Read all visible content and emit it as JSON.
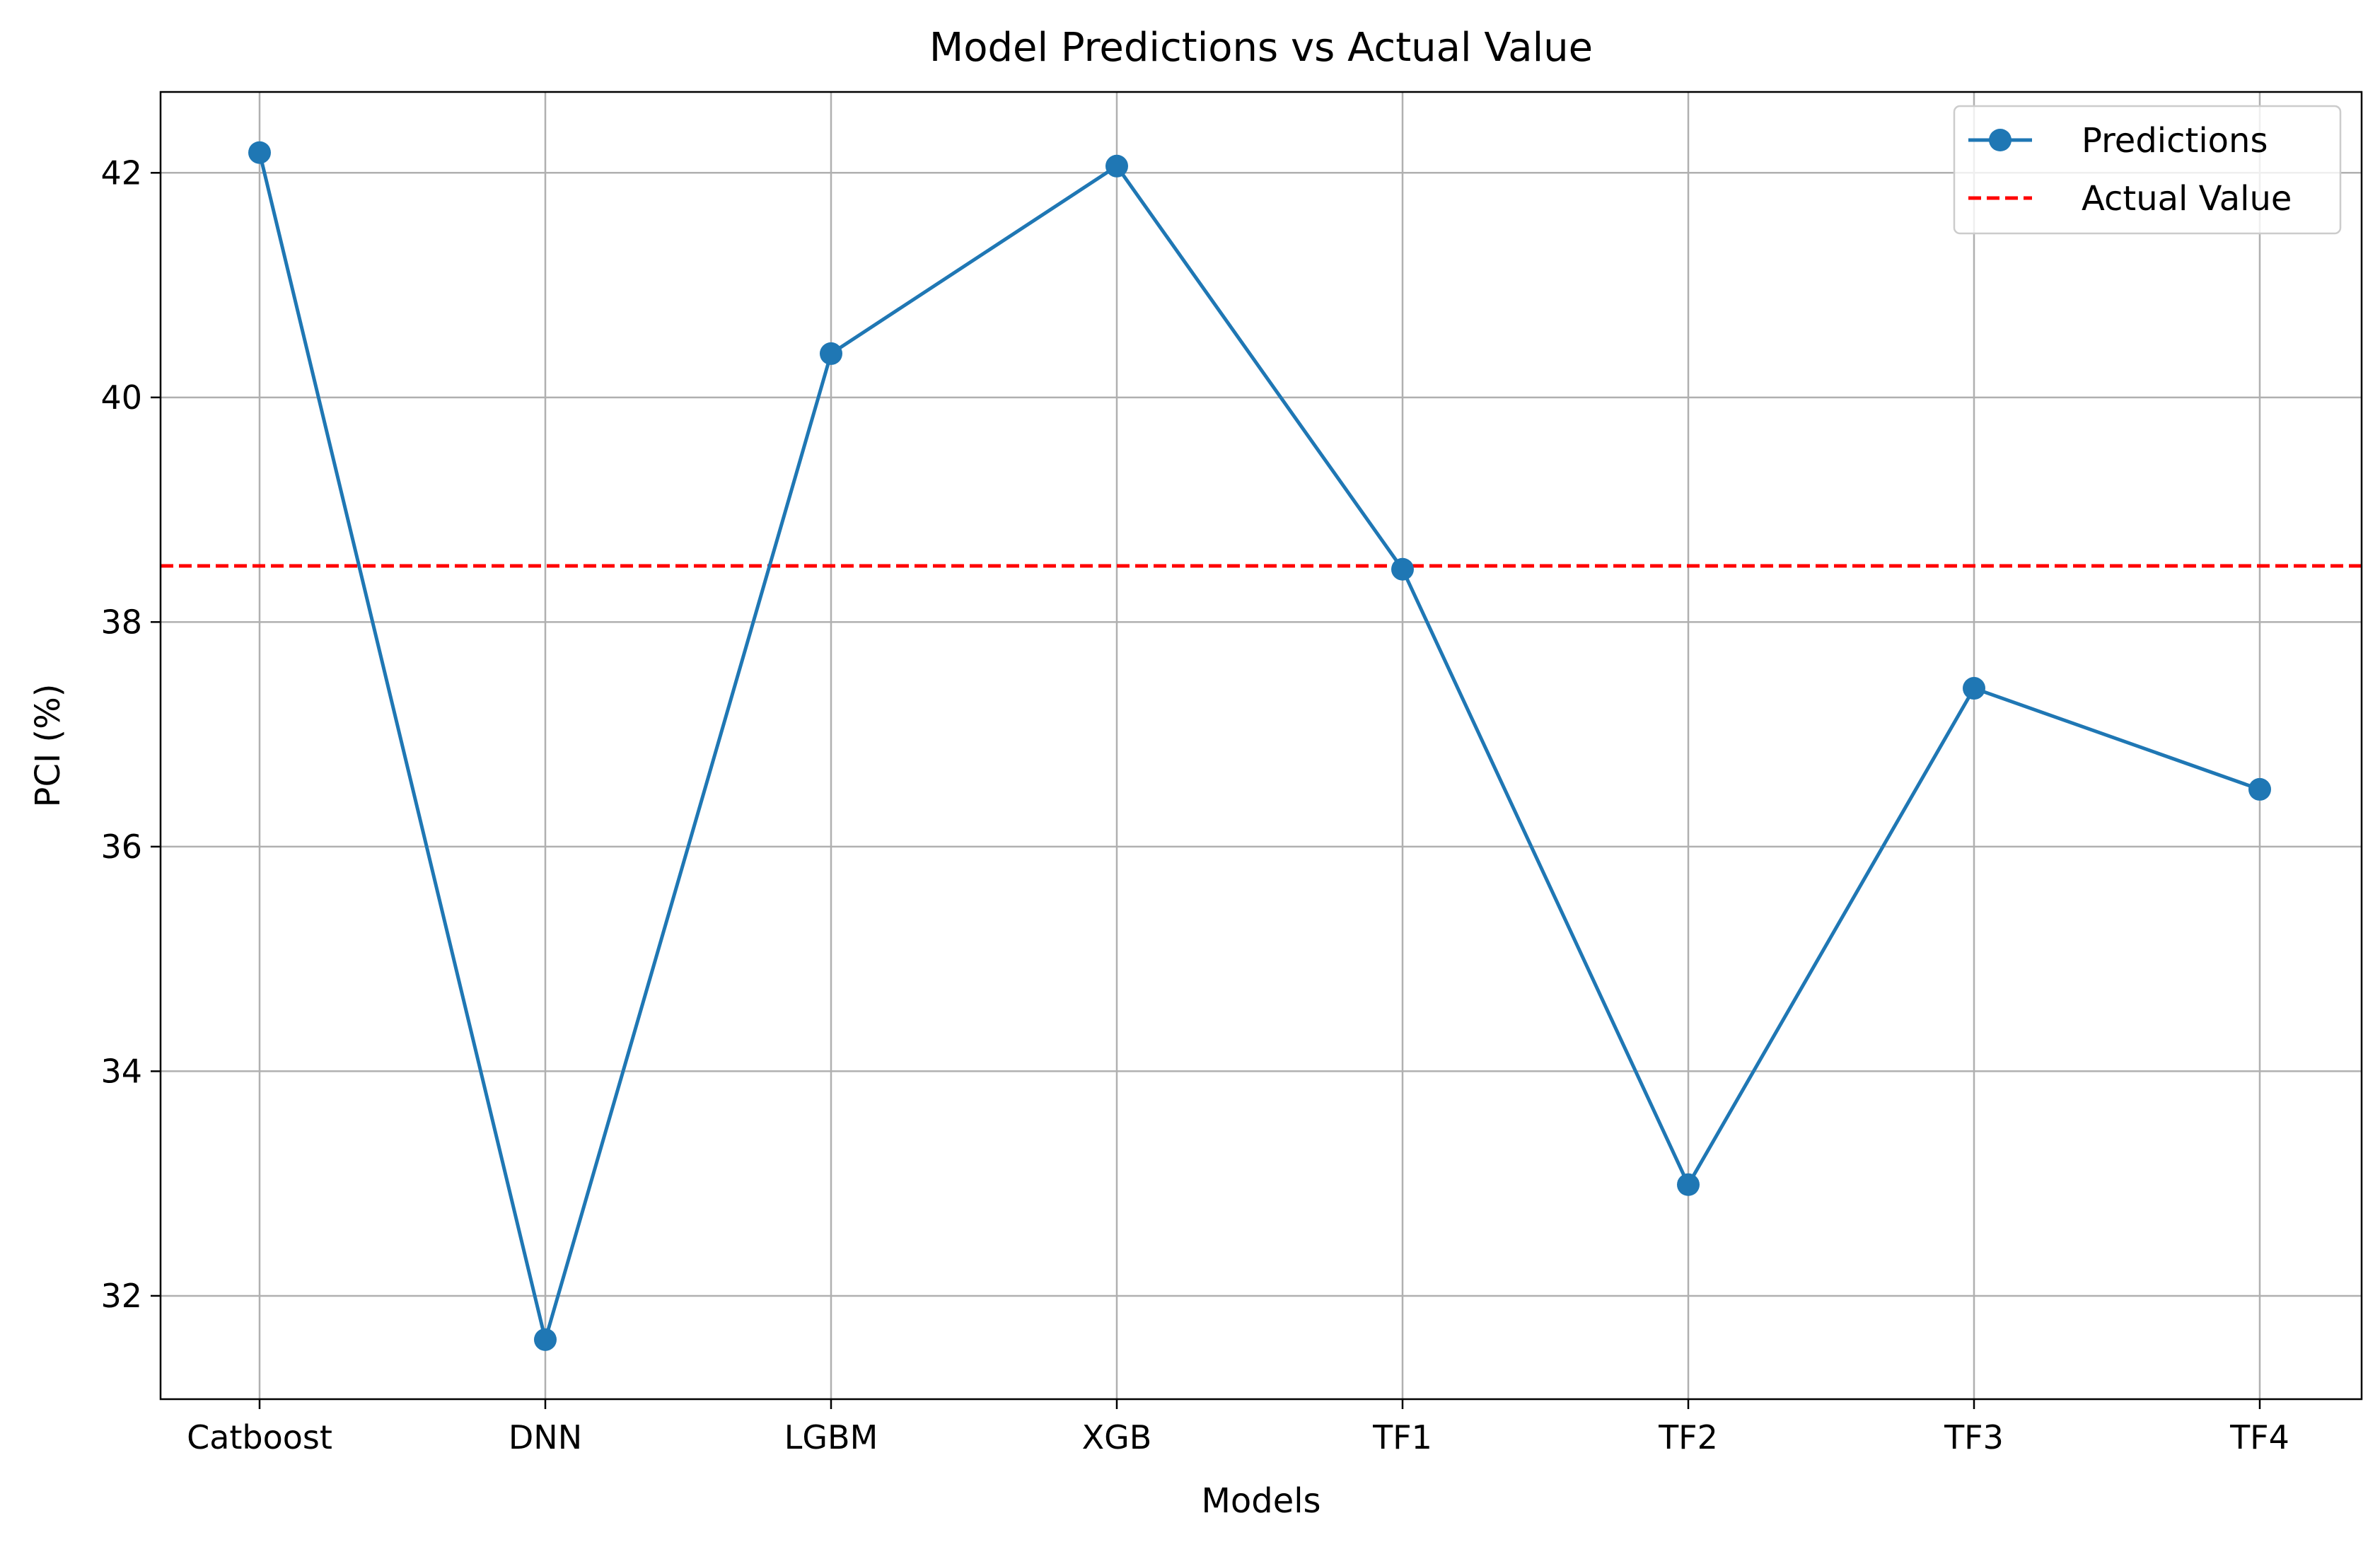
{
  "chart_data": {
    "type": "line",
    "title": "Model Predictions vs Actual Value",
    "xlabel": "Models",
    "ylabel": "PCI (%)",
    "categories": [
      "Catboost",
      "DNN",
      "LGBM",
      "XGB",
      "TF1",
      "TF2",
      "TF3",
      "TF4"
    ],
    "series": [
      {
        "name": "Predictions",
        "color": "#1f77b4",
        "marker": "circle",
        "values": [
          42.18,
          31.61,
          40.39,
          42.06,
          38.47,
          32.99,
          37.41,
          36.51
        ]
      }
    ],
    "reference_lines": [
      {
        "name": "Actual Value",
        "value": 38.5,
        "color": "#ff0000",
        "style": "dashed"
      }
    ],
    "ylim": [
      31.08,
      42.72
    ],
    "yticks": [
      32,
      34,
      36,
      38,
      40,
      42
    ],
    "ytick_labels": [
      "32",
      "34",
      "36",
      "38",
      "40",
      "42"
    ],
    "grid": true,
    "legend_position": "top-right"
  }
}
